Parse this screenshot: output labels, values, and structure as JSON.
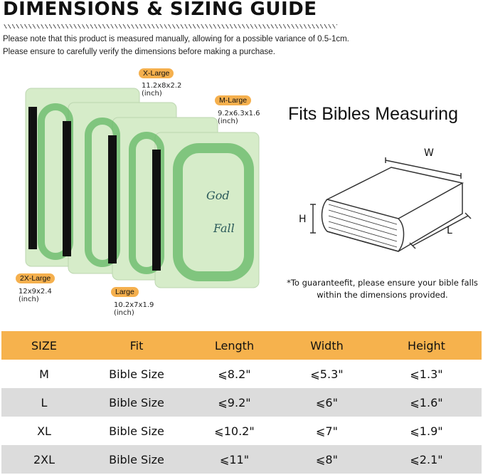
{
  "title": "DIMENSIONS & SIZING GUIDE",
  "notes": [
    "Please note that this product is measured manually, allowing for a possible variance of 0.5-1cm.",
    "Please ensure to carefully verify the dimensions before making a purchase."
  ],
  "sizes": [
    {
      "label": "X-Large",
      "dims": "11.2x8x2.2",
      "unit": "(inch)"
    },
    {
      "label": "M-Large",
      "dims": "9.2x6.3x1.6",
      "unit": "(inch)"
    },
    {
      "label": "2X-Large",
      "dims": "12x9x2.4",
      "unit": "(inch)"
    },
    {
      "label": "Large",
      "dims": "10.2x7x1.9",
      "unit": "(inch)"
    }
  ],
  "cover_text": {
    "line1": "God",
    "line2": "Fall"
  },
  "diagram": {
    "heading": "Fits Bibles Measuring",
    "w": "W",
    "h": "H",
    "l": "L",
    "note": "*To guaranteefit, please ensure your bible falls within the dimensions provided."
  },
  "table": {
    "headers": [
      "SIZE",
      "Fit",
      "Length",
      "Width",
      "Height"
    ],
    "rows": [
      [
        "M",
        "Bible Size",
        "⩽8.2\"",
        "⩽5.3\"",
        "⩽1.3\""
      ],
      [
        "L",
        "Bible Size",
        "⩽9.2\"",
        "⩽6\"",
        "⩽1.6\""
      ],
      [
        "XL",
        "Bible Size",
        "⩽10.2\"",
        "⩽7\"",
        "⩽1.9\""
      ],
      [
        "2XL",
        "Bible Size",
        "⩽11\"",
        "⩽8\"",
        "⩽2.1\""
      ]
    ]
  },
  "colors": {
    "accent": "#f6b24d",
    "row_alt": "#dcdcdc",
    "cover": "#d6ecc9"
  }
}
